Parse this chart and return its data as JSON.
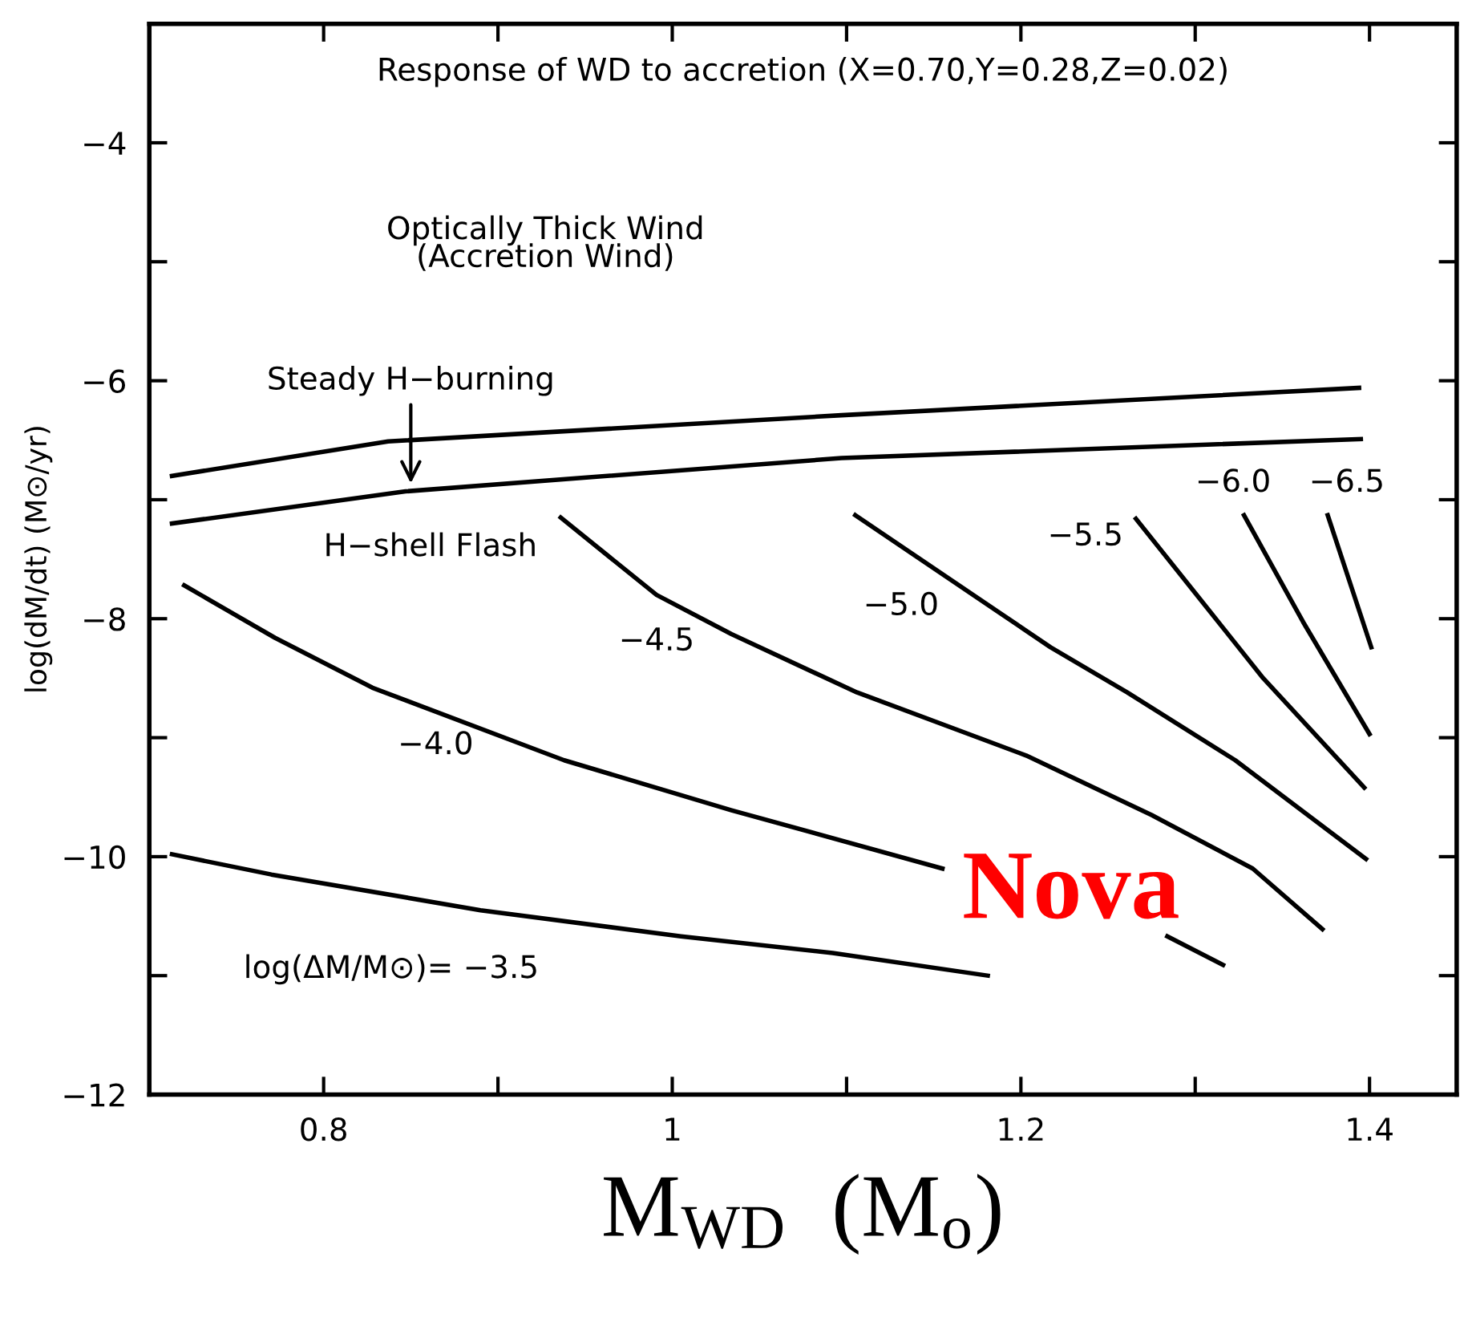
{
  "chart_data": {
    "type": "line",
    "title": "Response of WD to accretion (X=0.70,Y=0.28,Z=0.02)",
    "xlabel": "M$_{WD}$  (M$_{o}$)",
    "ylabel": "log(dM/dt) (M⊙/yr)",
    "xlim": [
      0.7,
      1.45
    ],
    "ylim": [
      -12,
      -3
    ],
    "xticks": [
      0.8,
      {
        "value": 0.9,
        "label": null
      },
      1,
      {
        "value": 1.1,
        "label": null
      },
      1.2,
      {
        "value": 1.3,
        "label": null
      },
      1.4
    ],
    "yticks": [
      {
        "value": -12,
        "label": "−12"
      },
      {
        "value": -11,
        "label": null
      },
      {
        "value": -10,
        "label": "−10"
      },
      {
        "value": -9,
        "label": null
      },
      {
        "value": -8,
        "label": "−8"
      },
      {
        "value": -7,
        "label": null
      },
      {
        "value": -6,
        "label": "−6"
      },
      {
        "value": -5,
        "label": null
      },
      {
        "value": -4,
        "label": "−4"
      }
    ],
    "grid": false,
    "legend": false,
    "marker": "none",
    "line_style": "solid",
    "series": [
      {
        "color": "#000000",
        "x": [
          0.713,
          0.837,
          1.097,
          1.394
        ],
        "values": [
          -6.8,
          -6.51,
          -6.29,
          -6.06
        ]
      },
      {
        "color": "#000000",
        "x": [
          0.713,
          0.847,
          1.097,
          1.395
        ],
        "values": [
          -7.2,
          -6.93,
          -6.65,
          -6.49
        ]
      },
      {
        "color": "#000000",
        "x": [
          0.713,
          0.77,
          0.89,
          1.005,
          1.092,
          1.181
        ],
        "values": [
          -9.98,
          -10.15,
          -10.45,
          -10.67,
          -10.81,
          -11.0
        ]
      },
      {
        "color": "#000000",
        "x": [
          0.72,
          0.772,
          0.828,
          0.938,
          1.034,
          1.155,
          1.22,
          1.284,
          1.316
        ],
        "values": [
          -7.72,
          -8.16,
          -8.58,
          -9.19,
          -9.61,
          -10.1,
          null,
          -10.67,
          -10.91
        ]
      },
      {
        "color": "#000000",
        "x": [
          0.936,
          0.991,
          1.034,
          1.106,
          1.203,
          1.275,
          1.333,
          1.373
        ],
        "values": [
          -7.15,
          -7.8,
          -8.13,
          -8.62,
          -9.15,
          -9.65,
          -10.1,
          -10.61
        ]
      },
      {
        "color": "#000000",
        "x": [
          1.105,
          1.217,
          1.261,
          1.323,
          1.398
        ],
        "values": [
          -7.13,
          -8.24,
          -8.62,
          -9.19,
          -10.02
        ]
      },
      {
        "color": "#000000",
        "x": [
          1.266,
          1.339,
          1.397
        ],
        "values": [
          -7.16,
          -8.5,
          -9.42
        ]
      },
      {
        "color": "#000000",
        "x": [
          1.328,
          1.362,
          1.4
        ],
        "values": [
          -7.13,
          -8.03,
          -8.97
        ]
      },
      {
        "color": "#000000",
        "x": [
          1.376,
          1.401
        ],
        "values": [
          -7.13,
          -8.24
        ]
      }
    ],
    "annotations": [
      {
        "text": "Steady H−burning",
        "x": 0.85,
        "y": -6.9
      },
      "Optically Thick Wind\n(Accretion Wind)",
      "H−shell Flash",
      "−4.0",
      "−4.5",
      "−5.0",
      "−5.5",
      "−6.0",
      "−6.5",
      "log(ΔM/M⊙)= −3.5",
      "Nova"
    ]
  }
}
